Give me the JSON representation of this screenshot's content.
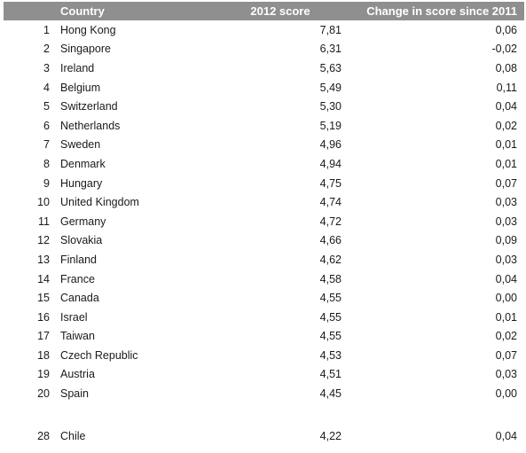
{
  "headers": {
    "rank": "",
    "country": "Country",
    "score": "2012 score",
    "change": "Change in score since 2011"
  },
  "rows": [
    {
      "rank": "1",
      "country": "Hong Kong",
      "score": "7,81",
      "change": "0,06"
    },
    {
      "rank": "2",
      "country": "Singapore",
      "score": "6,31",
      "change": "-0,02"
    },
    {
      "rank": "3",
      "country": "Ireland",
      "score": "5,63",
      "change": "0,08"
    },
    {
      "rank": "4",
      "country": "Belgium",
      "score": "5,49",
      "change": "0,11"
    },
    {
      "rank": "5",
      "country": "Switzerland",
      "score": "5,30",
      "change": "0,04"
    },
    {
      "rank": "6",
      "country": "Netherlands",
      "score": "5,19",
      "change": "0,02"
    },
    {
      "rank": "7",
      "country": "Sweden",
      "score": "4,96",
      "change": "0,01"
    },
    {
      "rank": "8",
      "country": "Denmark",
      "score": "4,94",
      "change": "0,01"
    },
    {
      "rank": "9",
      "country": "Hungary",
      "score": "4,75",
      "change": "0,07"
    },
    {
      "rank": "10",
      "country": "United Kingdom",
      "score": "4,74",
      "change": "0,03"
    },
    {
      "rank": "11",
      "country": "Germany",
      "score": "4,72",
      "change": "0,03"
    },
    {
      "rank": "12",
      "country": "Slovakia",
      "score": "4,66",
      "change": "0,09"
    },
    {
      "rank": "13",
      "country": "Finland",
      "score": "4,62",
      "change": "0,03"
    },
    {
      "rank": "14",
      "country": "France",
      "score": "4,58",
      "change": "0,04"
    },
    {
      "rank": "15",
      "country": "Canada",
      "score": "4,55",
      "change": "0,00"
    },
    {
      "rank": "16",
      "country": "Israel",
      "score": "4,55",
      "change": "0,01"
    },
    {
      "rank": "17",
      "country": "Taiwan",
      "score": "4,55",
      "change": "0,02"
    },
    {
      "rank": "18",
      "country": "Czech Republic",
      "score": "4,53",
      "change": "0,07"
    },
    {
      "rank": "19",
      "country": "Austria",
      "score": "4,51",
      "change": "0,03"
    },
    {
      "rank": "20",
      "country": "Spain",
      "score": "4,45",
      "change": "0,00"
    }
  ],
  "extra_row": {
    "rank": "28",
    "country": "Chile",
    "score": "4,22",
    "change": "0,04"
  }
}
